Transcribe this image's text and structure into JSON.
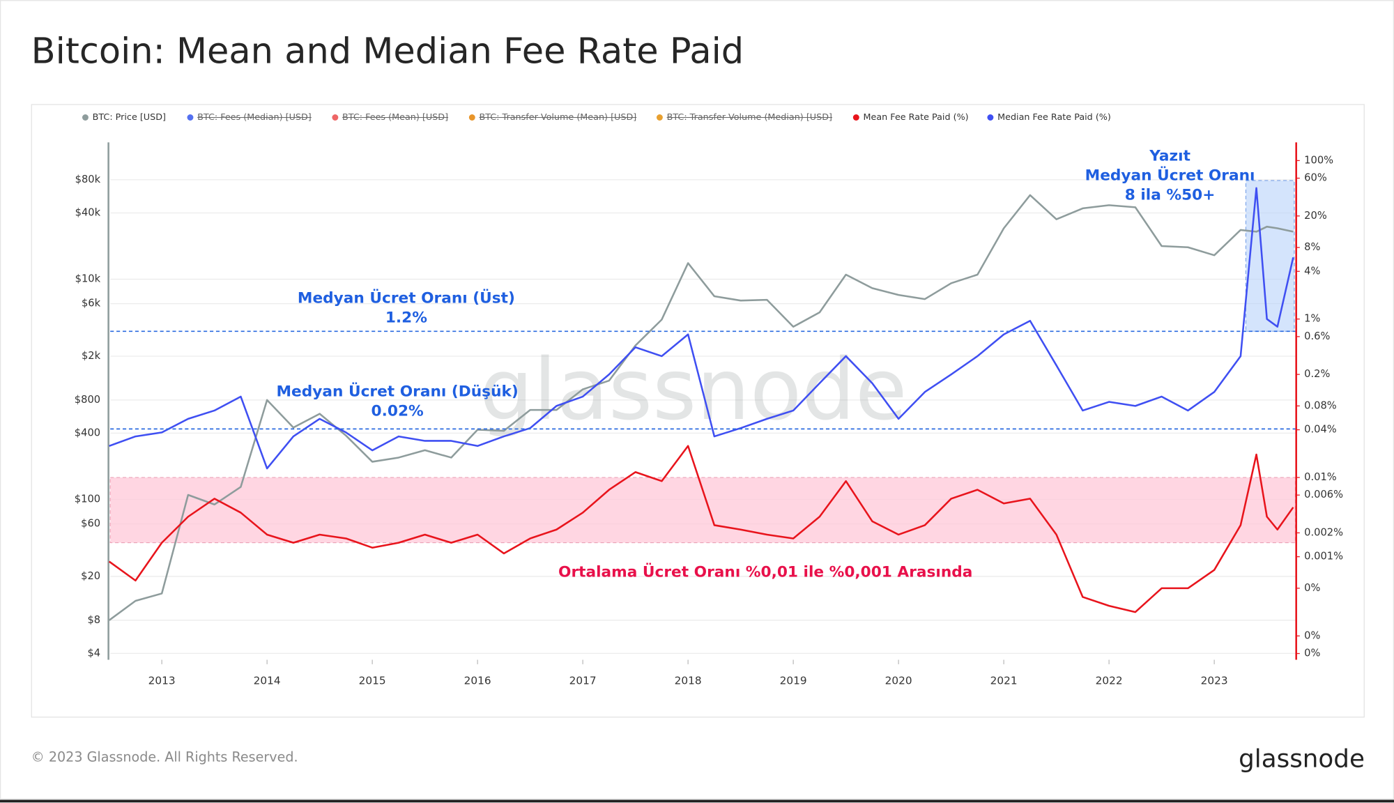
{
  "chart_data": {
    "type": "line",
    "title": "Bitcoin: Mean and Median Fee Rate Paid",
    "watermark": "glassnode",
    "footer": "© 2023 Glassnode. All Rights Reserved.",
    "logo": "glassnode",
    "x": [
      2012.5,
      2012.75,
      2013,
      2013.25,
      2013.5,
      2013.75,
      2014,
      2014.25,
      2014.5,
      2014.75,
      2015,
      2015.25,
      2015.5,
      2015.75,
      2016,
      2016.25,
      2016.5,
      2016.75,
      2017,
      2017.25,
      2017.5,
      2017.75,
      2018,
      2018.25,
      2018.5,
      2018.75,
      2019,
      2019.25,
      2019.5,
      2019.75,
      2020,
      2020.25,
      2020.5,
      2020.75,
      2021,
      2021.25,
      2021.5,
      2021.75,
      2022,
      2022.25,
      2022.5,
      2022.75,
      2023,
      2023.25,
      2023.4,
      2023.5,
      2023.6,
      2023.75
    ],
    "xlim": [
      2012.51,
      2023.77
    ],
    "xticks": [
      2013,
      2014,
      2015,
      2016,
      2017,
      2018,
      2019,
      2020,
      2021,
      2022,
      2023
    ],
    "ylim": [
      3.5,
      175000
    ],
    "yscale": "log",
    "yticks": [
      {
        "value": 80000,
        "label": "$80k"
      },
      {
        "value": 40000,
        "label": "$40k"
      },
      {
        "value": 10000,
        "label": "$10k"
      },
      {
        "value": 6000,
        "label": "$6k"
      },
      {
        "value": 2000,
        "label": "$2k"
      },
      {
        "value": 800,
        "label": "$800"
      },
      {
        "value": 400,
        "label": "$400"
      },
      {
        "value": 100,
        "label": "$100"
      },
      {
        "value": 60,
        "label": "$60"
      },
      {
        "value": 20,
        "label": "$20"
      },
      {
        "value": 8,
        "label": "$8"
      },
      {
        "value": 4,
        "label": "$4"
      }
    ],
    "y2lim": [
      5e-05,
      170
    ],
    "y2scale": "log",
    "y2ticks": [
      {
        "value": 100,
        "label": "100%"
      },
      {
        "value": 60,
        "label": "60%"
      },
      {
        "value": 20,
        "label": "20%"
      },
      {
        "value": 8,
        "label": "8%"
      },
      {
        "value": 4,
        "label": "4%"
      },
      {
        "value": 1,
        "label": "1%"
      },
      {
        "value": 0.6,
        "label": "0.6%"
      },
      {
        "value": 0.2,
        "label": "0.2%"
      },
      {
        "value": 0.08,
        "label": "0.08%"
      },
      {
        "value": 0.04,
        "label": "0.04%"
      },
      {
        "value": 0.01,
        "label": "0.01%"
      },
      {
        "value": 0.006,
        "label": "0.006%"
      },
      {
        "value": 0.002,
        "label": "0.002%"
      },
      {
        "value": 0.001,
        "label": "0.001%"
      },
      {
        "value": 0.0004,
        "label": "0%"
      },
      {
        "value": 0.0001,
        "label": "0%"
      },
      {
        "value": 6e-05,
        "label": "0%"
      }
    ],
    "grid": true,
    "series": [
      {
        "name": "BTC: Price [USD]",
        "color": "#8e9c9c",
        "visible": true,
        "values": [
          8,
          12,
          14,
          110,
          90,
          130,
          800,
          450,
          600,
          380,
          220,
          240,
          280,
          240,
          430,
          420,
          650,
          650,
          1000,
          1200,
          2500,
          4300,
          14000,
          7000,
          6400,
          6500,
          3700,
          5000,
          11000,
          8300,
          7200,
          6600,
          9200,
          11000,
          29000,
          58000,
          35000,
          44000,
          47000,
          45000,
          20000,
          19500,
          16500,
          28000,
          27000,
          30000,
          29000,
          27000
        ]
      },
      {
        "name": "BTC: Fees (Median) [USD]",
        "color": "#5470f0",
        "visible": false
      },
      {
        "name": "BTC: Fees (Mean) [USD]",
        "color": "#ee6666",
        "visible": false
      },
      {
        "name": "BTC: Transfer Volume (Mean) [USD]",
        "color": "#e8952a",
        "visible": false
      },
      {
        "name": "BTC: Transfer Volume (Median) [USD]",
        "color": "#e8a030",
        "visible": false
      },
      {
        "name": "Mean Fee Rate Paid (%)",
        "color": "#e8141c",
        "visible": true,
        "axis": "y2",
        "values": [
          0.00087,
          0.0005,
          0.0015,
          0.0032,
          0.0054,
          0.0036,
          0.0019,
          0.0015,
          0.0019,
          0.0017,
          0.0013,
          0.0015,
          0.0019,
          0.0015,
          0.0019,
          0.0011,
          0.0017,
          0.0022,
          0.0036,
          0.007,
          0.0117,
          0.009,
          0.025,
          0.0025,
          0.0022,
          0.0019,
          0.0017,
          0.0032,
          0.009,
          0.0028,
          0.0019,
          0.0025,
          0.0054,
          0.007,
          0.0047,
          0.0054,
          0.0019,
          0.00031,
          0.00024,
          0.0002,
          0.0004,
          0.0004,
          0.00068,
          0.0025,
          0.0195,
          0.0032,
          0.0022,
          0.0042
        ]
      },
      {
        "name": "Median Fee Rate Paid (%)",
        "color": "#3f4ff2",
        "visible": true,
        "axis": "y2",
        "values": [
          0.025,
          0.033,
          0.037,
          0.055,
          0.07,
          0.105,
          0.013,
          0.033,
          0.055,
          0.037,
          0.022,
          0.033,
          0.029,
          0.029,
          0.025,
          0.033,
          0.042,
          0.08,
          0.105,
          0.2,
          0.44,
          0.34,
          0.64,
          0.033,
          0.042,
          0.055,
          0.07,
          0.155,
          0.34,
          0.155,
          0.055,
          0.12,
          0.2,
          0.34,
          0.64,
          0.95,
          0.26,
          0.07,
          0.09,
          0.08,
          0.105,
          0.07,
          0.12,
          0.34,
          45,
          1.0,
          0.8,
          6
        ]
      }
    ],
    "reference_lines": [
      {
        "value": 0.7,
        "axis": "y2",
        "color": "#2a6ae0"
      },
      {
        "value": 0.041,
        "axis": "y2",
        "color": "#2a6ae0"
      }
    ],
    "band": {
      "y2range": [
        0.0015,
        0.01
      ],
      "color": "#ffc8d8"
    },
    "highlight": {
      "xrange": [
        2023.3,
        2023.76
      ],
      "y2range": [
        0.7,
        56
      ],
      "color": "#b8d2fa"
    },
    "annotations": [
      {
        "lines": [
          "Medyan Ücret Oranı (Üst)",
          "1.2%"
        ],
        "color": "#1f5fe0"
      },
      {
        "lines": [
          "Medyan Ücret Oranı (Düşük)",
          "0.02%"
        ],
        "color": "#1f5fe0"
      },
      {
        "lines": [
          "Ortalama Ücret Oranı %0,01 ile %0,001 Arasında"
        ],
        "color": "#e8104a"
      },
      {
        "lines": [
          "Yazıt",
          "Medyan Ücret Oranı",
          "8 ila %50+"
        ],
        "color": "#1f5fe0"
      }
    ]
  }
}
